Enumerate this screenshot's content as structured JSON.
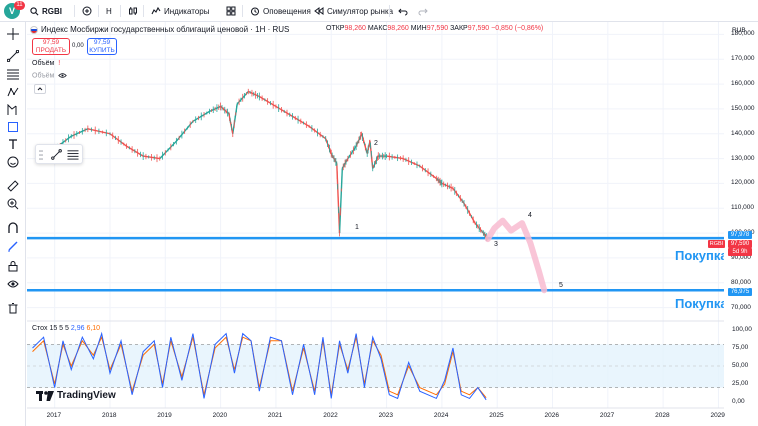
{
  "topbar": {
    "avatar_letter": "V",
    "avatar_badge": "11",
    "symbol": "RGBI",
    "interval": "H",
    "indicators_label": "Индикаторы",
    "alerts_label": "Оповещения",
    "replay_label": "Симулятор рынка"
  },
  "header": {
    "title": "Индекс Мосбиржи государственных облигаций ценовой · 1H · RUS",
    "open_label": "ОТКР",
    "open_value": "98,260",
    "high_label": "МАКС",
    "high_value": "98,260",
    "low_label": "МИН",
    "low_value": "97,590",
    "close_label": "ЗАКР",
    "close_value": "97,590",
    "change": "−0,850 (−0,86%)",
    "sell_price": "97,59",
    "sell_label": "ПРОДАТЬ",
    "spread": "0,00",
    "buy_price": "97,59",
    "buy_label": "КУПИТЬ",
    "indicator_1": "Объём",
    "indicator_2": "Объём"
  },
  "price_axis": {
    "currency": "RUB",
    "labels": [
      "180,000",
      "170,000",
      "160,000",
      "150,000",
      "140,000",
      "130,000",
      "120,000",
      "110,000",
      "100,000",
      "90,000",
      "80,000",
      "70,000"
    ],
    "tag_level_1": "97,978",
    "tag_last": "97,590",
    "tag_countdown": "5d 9h",
    "tag_level_2": "76,975",
    "tag_symbol": "RGBI"
  },
  "annotations": {
    "buy_zone_1": "Покупка",
    "buy_zone_2": "Покупка",
    "wave_1": "1",
    "wave_2": "2",
    "wave_3": "3",
    "wave_4": "4",
    "wave_5": "5"
  },
  "stochastic": {
    "name": "Стох",
    "params": "15 5 5",
    "k_value": "2,96",
    "d_value": "6,10",
    "axis_labels": [
      "100,00",
      "75,00",
      "50,00",
      "25,00",
      "0,00"
    ]
  },
  "time_axis": {
    "labels": [
      "2017",
      "2018",
      "2019",
      "2020",
      "2021",
      "2022",
      "2023",
      "2024",
      "2025",
      "2026",
      "2027",
      "2028",
      "2029"
    ]
  },
  "brand": "TradingView",
  "colors": {
    "up": "#26a69a",
    "down": "#ef5350",
    "level_line": "#2196f3",
    "forecast": "#f8bbd0",
    "stoch_k": "#2962ff",
    "stoch_d": "#ff6d00"
  },
  "chart_data": {
    "type": "line",
    "x_unit": "year",
    "price_series": {
      "x": [
        2016.75,
        2017.0,
        2017.3,
        2017.6,
        2018.0,
        2018.3,
        2018.6,
        2018.9,
        2019.2,
        2019.5,
        2019.8,
        2020.0,
        2020.15,
        2020.22,
        2020.3,
        2020.5,
        2020.7,
        2021.0,
        2021.3,
        2021.6,
        2021.9,
        2022.0,
        2022.1,
        2022.15,
        2022.2,
        2022.3,
        2022.45,
        2022.55,
        2022.65,
        2022.7,
        2022.75,
        2022.85,
        2023.0,
        2023.3,
        2023.6,
        2023.9,
        2024.0,
        2024.2,
        2024.4,
        2024.6,
        2024.75,
        2024.83
      ],
      "y": [
        130,
        134,
        139,
        142,
        140,
        135,
        131,
        130,
        137,
        145,
        149,
        151,
        148,
        140,
        152,
        157,
        155,
        151,
        147,
        143,
        138,
        132,
        128,
        100,
        126,
        130,
        135,
        140,
        132,
        137,
        126,
        131,
        131,
        130,
        127,
        122,
        120,
        118,
        112,
        104,
        100,
        97.59
      ]
    },
    "forecast_path": {
      "x": [
        2024.83,
        2024.95,
        2025.1,
        2025.25,
        2025.45,
        2025.6,
        2025.75,
        2025.85
      ],
      "y": [
        97.59,
        102,
        105,
        101,
        104,
        96,
        85,
        77
      ]
    },
    "horizontal_levels": [
      97.978,
      76.975
    ],
    "y_range": [
      65,
      185
    ],
    "x_range": [
      2016.5,
      2029.1
    ],
    "stochastic": {
      "x": [
        2016.6,
        2016.8,
        2017.0,
        2017.15,
        2017.3,
        2017.5,
        2017.7,
        2017.85,
        2018.0,
        2018.2,
        2018.4,
        2018.6,
        2018.8,
        2018.95,
        2019.1,
        2019.3,
        2019.5,
        2019.7,
        2019.9,
        2020.1,
        2020.25,
        2020.4,
        2020.55,
        2020.7,
        2020.9,
        2021.1,
        2021.3,
        2021.5,
        2021.7,
        2021.85,
        2022.0,
        2022.15,
        2022.3,
        2022.45,
        2022.6,
        2022.75,
        2022.9,
        2023.05,
        2023.2,
        2023.4,
        2023.6,
        2023.75,
        2023.9,
        2024.05,
        2024.2,
        2024.35,
        2024.5,
        2024.65,
        2024.8
      ],
      "k": [
        75,
        90,
        20,
        85,
        45,
        90,
        60,
        95,
        40,
        85,
        10,
        70,
        85,
        20,
        90,
        30,
        95,
        5,
        80,
        95,
        40,
        95,
        85,
        15,
        90,
        85,
        10,
        80,
        10,
        90,
        5,
        85,
        40,
        95,
        20,
        90,
        60,
        10,
        5,
        55,
        15,
        10,
        5,
        30,
        75,
        10,
        5,
        20,
        3
      ],
      "d": [
        70,
        85,
        25,
        80,
        50,
        85,
        65,
        90,
        45,
        80,
        15,
        65,
        80,
        25,
        85,
        35,
        90,
        10,
        75,
        90,
        45,
        90,
        85,
        20,
        85,
        85,
        15,
        75,
        15,
        85,
        10,
        80,
        45,
        90,
        25,
        85,
        65,
        15,
        10,
        50,
        20,
        15,
        10,
        25,
        70,
        15,
        10,
        20,
        6
      ],
      "upper_band": 80,
      "lower_band": 20,
      "y_range": [
        0,
        100
      ]
    }
  }
}
